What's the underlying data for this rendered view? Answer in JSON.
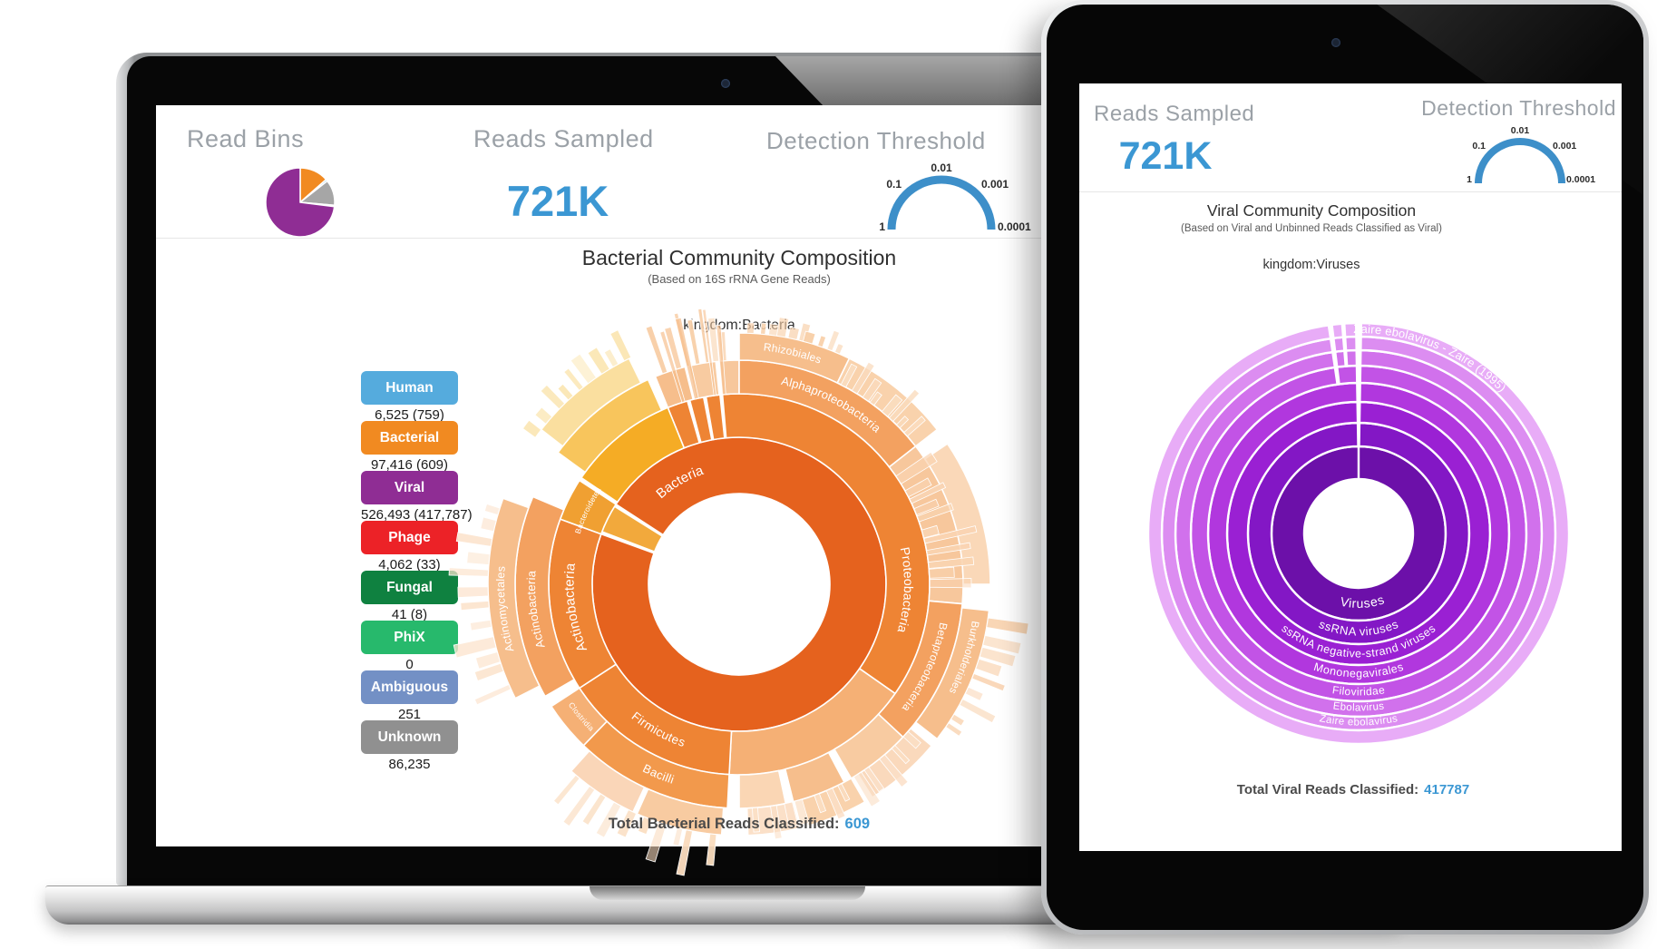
{
  "accent": {
    "blue": "#3B97D3",
    "gauge_blue": "#3D8FC9"
  },
  "gauge_ticks": [
    "1",
    "0.1",
    "0.01",
    "0.001",
    "0.0001"
  ],
  "laptop": {
    "header": {
      "read_bins_label": "Read Bins",
      "reads_sampled_label": "Reads Sampled",
      "reads_sampled_value": "721K",
      "detection_threshold_label": "Detection Threshold"
    },
    "chart": {
      "title": "Bacterial Community Composition",
      "subtitle": "(Based on 16S rRNA Gene Reads)",
      "kingdom": "kingdom:Bacteria",
      "total_label": "Total Bacterial Reads Classified:",
      "total_value": "609"
    },
    "legend": [
      {
        "label": "Human",
        "count": "6,525 (759)",
        "color": "#55ABDD"
      },
      {
        "label": "Bacterial",
        "count": "97,416 (609)",
        "color": "#F18A21"
      },
      {
        "label": "Viral",
        "count": "526,493 (417,787)",
        "color": "#8F2D94"
      },
      {
        "label": "Phage",
        "count": "4,062 (33)",
        "color": "#EC2227"
      },
      {
        "label": "Fungal",
        "count": "41 (8)",
        "color": "#0F8140"
      },
      {
        "label": "PhiX",
        "count": "0",
        "color": "#27B96C"
      },
      {
        "label": "Ambiguous",
        "count": "251",
        "color": "#7390C5"
      },
      {
        "label": "Unknown",
        "count": "86,235",
        "color": "#909090"
      }
    ]
  },
  "tablet": {
    "header": {
      "reads_sampled_label": "Reads Sampled",
      "reads_sampled_value": "721K",
      "detection_threshold_label": "Detection Threshold"
    },
    "chart": {
      "title": "Viral Community Composition",
      "subtitle": "(Based on Viral and Unbinned Reads Classified as Viral)",
      "kingdom": "kingdom:Viruses",
      "total_label": "Total Viral Reads Classified:",
      "total_value": "417787"
    }
  },
  "chart_data": [
    {
      "id": "read_bins_pie",
      "type": "pie",
      "title": "Read Bins",
      "slices": [
        {
          "label": "Bacterial",
          "value": 97416,
          "color": "#F18A21"
        },
        {
          "label": "Human",
          "value": 6525,
          "color": "#8BC6E8"
        },
        {
          "label": "Unknown",
          "value": 86235,
          "color": "#A6A6A6"
        },
        {
          "label": "Phage",
          "value": 4062,
          "color": "#EC2227"
        },
        {
          "label": "Ambiguous",
          "value": 251,
          "color": "#7390C5"
        },
        {
          "label": "Fungal",
          "value": 41,
          "color": "#0F8140"
        },
        {
          "label": "PhiX",
          "value": 0,
          "color": "#27B96C"
        },
        {
          "label": "Viral",
          "value": 526493,
          "color": "#8F2D94"
        }
      ]
    },
    {
      "id": "detection_threshold_gauge",
      "type": "gauge",
      "ticks": [
        "1",
        "0.1",
        "0.01",
        "0.001",
        "0.0001"
      ],
      "color": "#3D8FC9"
    },
    {
      "id": "bacterial_sunburst",
      "type": "sunburst",
      "title": "Bacterial Community Composition",
      "total_reads": 609,
      "rings": [
        100,
        162,
        210,
        247,
        277
      ],
      "segments": [
        {
          "r": 0,
          "a0": -57,
          "a1": 290,
          "color": "#E5621E"
        },
        {
          "r": 0,
          "a0": 291,
          "a1": 302,
          "color": "#F2A93C"
        },
        {
          "r": 1,
          "a0": -22,
          "a1": 125,
          "color": "#EE8434"
        },
        {
          "r": 1,
          "a0": 125,
          "a1": 183,
          "color": "#F5B075"
        },
        {
          "r": 1,
          "a0": 183,
          "a1": 237,
          "color": "#EE8434"
        },
        {
          "r": 1,
          "a0": 237,
          "a1": 290,
          "color": "#EE8434"
        },
        {
          "r": 1,
          "a0": 290,
          "a1": 303,
          "color": "#F0A032"
        },
        {
          "r": 1,
          "a0": 304,
          "a1": 338,
          "color": "#F5AC25"
        },
        {
          "r": 2,
          "a0": -22,
          "a1": -14,
          "color": "#F6BE8C"
        },
        {
          "r": 2,
          "a0": -13,
          "a1": -6,
          "color": "#F8CBA1"
        },
        {
          "r": 2,
          "a0": -5,
          "a1": 0,
          "color": "#F7C79C"
        },
        {
          "r": 2,
          "a0": 0,
          "a1": 52,
          "color": "#F3A160"
        },
        {
          "r": 2,
          "a0": 52,
          "a1": 95,
          "color": "#F7C79C"
        },
        {
          "r": 2,
          "a0": 95,
          "a1": 133,
          "color": "#F3A160"
        },
        {
          "r": 2,
          "a0": 133,
          "a1": 150,
          "color": "#F8CBA1"
        },
        {
          "r": 2,
          "a0": 152,
          "a1": 166,
          "color": "#F6BE8C"
        },
        {
          "r": 2,
          "a0": 168,
          "a1": 180,
          "color": "#FAD6B4"
        },
        {
          "r": 2,
          "a0": 183,
          "a1": 224,
          "color": "#F2994C"
        },
        {
          "r": 2,
          "a0": 224,
          "a1": 237,
          "color": "#F5B075"
        },
        {
          "r": 2,
          "a0": 240,
          "a1": 293,
          "color": "#F3A160"
        },
        {
          "r": 2,
          "a0": 306,
          "a1": 336,
          "color": "#F8C55C"
        },
        {
          "r": 3,
          "a0": 0,
          "a1": 26,
          "color": "#F6BE8C"
        },
        {
          "r": 3,
          "a0": 26,
          "a1": 52,
          "color": "#F9D2AC"
        },
        {
          "r": 3,
          "a0": 56,
          "a1": 90,
          "color": "#FAD8B8"
        },
        {
          "r": 3,
          "a0": 96,
          "a1": 128,
          "color": "#F6BE8C"
        },
        {
          "r": 3,
          "a0": 130,
          "a1": 148,
          "color": "#FAD9BC"
        },
        {
          "r": 3,
          "a0": 150,
          "a1": 164,
          "color": "#F9D2AC"
        },
        {
          "r": 3,
          "a0": 166,
          "a1": 178,
          "color": "#FBE0C8"
        },
        {
          "r": 3,
          "a0": 184,
          "a1": 204,
          "color": "#F8CBA1"
        },
        {
          "r": 3,
          "a0": 205,
          "a1": 222,
          "color": "#FAD6B8"
        },
        {
          "r": 3,
          "a0": 243,
          "a1": 290,
          "color": "#F6BE8C"
        },
        {
          "r": 3,
          "a0": 308,
          "a1": 334,
          "color": "#FADF9F"
        }
      ],
      "labels": [
        {
          "text": "Bacteria",
          "r": 0,
          "la": -30,
          "flip": false,
          "fs": 15
        },
        {
          "text": "Proteobacteria",
          "r": 1,
          "la": 92,
          "flip": false,
          "fs": 14
        },
        {
          "text": "Firmicutes",
          "r": 1,
          "la": 209,
          "flip": true,
          "fs": 13.5
        },
        {
          "text": "Actinobacteria",
          "r": 1,
          "la": 262,
          "flip": false,
          "fs": 15
        },
        {
          "text": "Bacteroidetes",
          "r": 1,
          "la": 296,
          "flip": false,
          "fs": 8.5
        },
        {
          "text": "Alphaproteobacteria",
          "r": 2,
          "la": 27,
          "flip": false,
          "fs": 13
        },
        {
          "text": "Betaproteobacteria",
          "r": 2,
          "la": 114,
          "flip": false,
          "fs": 12
        },
        {
          "text": "Bacilli",
          "r": 2,
          "la": 203,
          "flip": true,
          "fs": 13
        },
        {
          "text": "Clostridia",
          "r": 2,
          "la": 230,
          "flip": true,
          "fs": 8.5
        },
        {
          "text": "Actinobacteria",
          "r": 2,
          "la": 263,
          "flip": false,
          "fs": 13
        },
        {
          "text": "Rhizobiales",
          "r": 3,
          "la": 13,
          "flip": false,
          "fs": 12
        },
        {
          "text": "Burkholderiales",
          "r": 3,
          "la": 108,
          "flip": false,
          "fs": 11.5
        },
        {
          "text": "Actinomycetales",
          "r": 3,
          "la": 264,
          "flip": false,
          "fs": 12.5
        }
      ],
      "white_cuts": [
        {
          "ri0": 1,
          "ri1": 2,
          "a0": 344,
          "a1": 345.2
        },
        {
          "ri0": 1,
          "ri1": 2,
          "a0": 349,
          "a1": 350.2
        },
        {
          "ri0": 1,
          "ri1": 2,
          "a0": 354,
          "a1": 355.2
        }
      ],
      "bar_clusters": [
        {
          "a0": -20,
          "a1": -2,
          "n": 7,
          "r": 247,
          "lmin": 25,
          "lmax": 60,
          "w": 1.1,
          "color": "#F8CFA8"
        },
        {
          "a0": 2,
          "a1": 24,
          "n": 10,
          "r": 277,
          "lmin": 10,
          "lmax": 22,
          "w": 1.6,
          "color": "#F8CFA8"
        },
        {
          "a0": 27,
          "a1": 50,
          "n": 8,
          "r": 247,
          "lmin": 12,
          "lmax": 45,
          "w": 1.8,
          "color": "#FADCBE"
        },
        {
          "a0": 56,
          "a1": 92,
          "n": 11,
          "r": 210,
          "lmin": 15,
          "lmax": 60,
          "w": 2.0,
          "color": "#F9D4B2"
        },
        {
          "a0": 98,
          "a1": 126,
          "n": 9,
          "r": 277,
          "lmin": 12,
          "lmax": 45,
          "w": 1.8,
          "color": "#F9D4B2"
        },
        {
          "a0": 131,
          "a1": 178,
          "n": 12,
          "r": 247,
          "lmin": 10,
          "lmax": 40,
          "w": 1.8,
          "color": "#FBDFC6"
        },
        {
          "a0": 185,
          "a1": 222,
          "n": 10,
          "r": 277,
          "lmin": 12,
          "lmax": 50,
          "w": 1.8,
          "color": "#FADCBE"
        },
        {
          "a0": 245,
          "a1": 288,
          "n": 12,
          "r": 277,
          "lmin": 12,
          "lmax": 45,
          "w": 1.9,
          "color": "#FCE4CE"
        },
        {
          "a0": 306,
          "a1": 336,
          "n": 9,
          "r": 277,
          "lmin": 12,
          "lmax": 40,
          "w": 1.8,
          "color": "#FBE7B6"
        },
        {
          "a0": 342,
          "a1": 358,
          "n": 4,
          "r": 210,
          "lmin": 60,
          "lmax": 105,
          "w": 0.9,
          "color": "#F6BE8C"
        }
      ]
    },
    {
      "id": "viral_sunburst",
      "type": "sunburst",
      "title": "Viral Community Composition",
      "total_reads": 417787,
      "rings": [
        60,
        96,
        122,
        145,
        166,
        185,
        202,
        217,
        232
      ],
      "segments": [
        {
          "r": 0,
          "a0": 0,
          "a1": 360,
          "color": "#6C10A9"
        },
        {
          "r": 1,
          "a0": 0,
          "a1": 360,
          "color": "#8317C5"
        },
        {
          "r": 2,
          "a0": 0,
          "a1": 360,
          "color": "#9A20D3"
        },
        {
          "r": 3,
          "a0": 0,
          "a1": 360,
          "color": "#B137DE"
        },
        {
          "r": 4,
          "a0": 0,
          "a1": 360,
          "color": "#C253E6"
        },
        {
          "r": 5,
          "a0": 0,
          "a1": 360,
          "color": "#D171EC"
        },
        {
          "r": 6,
          "a0": 0,
          "a1": 360,
          "color": "#DC8DF1"
        },
        {
          "r": 7,
          "a0": 0,
          "a1": 360,
          "color": "#E8ACF7"
        }
      ],
      "labels": [
        {
          "text": "Viruses",
          "r": 0,
          "la": 177,
          "flip": true,
          "fs": 14
        },
        {
          "text": "ssRNA viruses",
          "r": 1,
          "la": 180,
          "flip": true,
          "fs": 13
        },
        {
          "text": "ssRNA negative-strand viruses",
          "r": 2,
          "la": 180,
          "flip": true,
          "fs": 12.5
        },
        {
          "text": "Mononegavirales",
          "r": 3,
          "la": 180,
          "flip": true,
          "fs": 12.5
        },
        {
          "text": "Filoviridae",
          "r": 4,
          "la": 180,
          "flip": true,
          "fs": 12
        },
        {
          "text": "Ebolavirus",
          "r": 5,
          "la": 180,
          "flip": true,
          "fs": 11.5
        },
        {
          "text": "Zaire ebolavirus",
          "r": 6,
          "la": 180,
          "flip": true,
          "fs": 11.5
        },
        {
          "text": "Zaire ebolavirus - Zaire (1995)",
          "r": 7,
          "la": 22,
          "flip": false,
          "fs": 13
        }
      ],
      "white_cuts": [
        {
          "ri0": 1,
          "ri1": 8,
          "a0": -1,
          "a1": 1
        },
        {
          "ri0": 4,
          "ri1": 8,
          "a0": -8.5,
          "a1": -7
        },
        {
          "ri0": 5,
          "ri1": 8,
          "a0": -4.8,
          "a1": -3.6
        }
      ],
      "bar_clusters": []
    }
  ]
}
